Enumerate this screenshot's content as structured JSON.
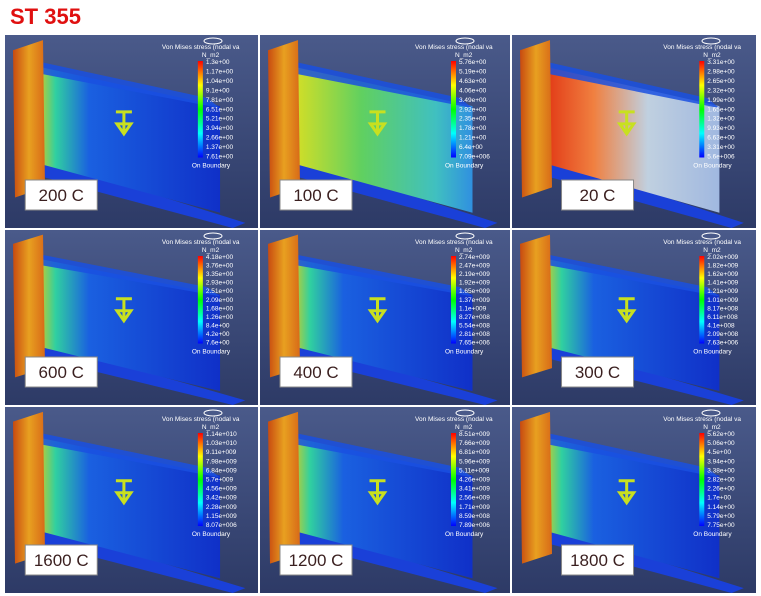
{
  "title": "ST 355",
  "panels": [
    {
      "label": "200 C",
      "legend_title": "Von Mises stress (nodal va",
      "unit": "N_m2",
      "boundary": "On Boundary",
      "legend_values": [
        "1.3e+00",
        "1.17e+00",
        "1.04e+00",
        "9.1e+00",
        "7.81e+00",
        "6.51e+00",
        "5.21e+00",
        "3.94e+00",
        "2.66e+00",
        "1.37e+00",
        "7.61e+00"
      ]
    },
    {
      "label": "100 C",
      "legend_title": "Von Mises stress (nodal va",
      "unit": "N_m2",
      "boundary": "On Boundary",
      "legend_values": [
        "5.76e+00",
        "5.19e+00",
        "4.63e+00",
        "4.06e+00",
        "3.49e+00",
        "2.92e+00",
        "2.35e+00",
        "1.78e+00",
        "1.21e+00",
        "6.4e+00",
        "7.09e+006"
      ]
    },
    {
      "label": "20 C",
      "legend_title": "Von Mises stress (nodal va",
      "unit": "N_m2",
      "boundary": "On Boundary",
      "legend_values": [
        "3.31e+00",
        "2.98e+00",
        "2.65e+00",
        "2.32e+00",
        "1.99e+00",
        "1.65e+00",
        "1.32e+00",
        "9.93e+00",
        "6.63e+00",
        "3.31e+00",
        "5.6e+006"
      ]
    },
    {
      "label": "600 C",
      "legend_title": "Von Mises stress (nodal va",
      "unit": "N_m2",
      "boundary": "On Boundary",
      "legend_values": [
        "4.18e+00",
        "3.76e+00",
        "3.35e+00",
        "2.93e+00",
        "2.51e+00",
        "2.09e+00",
        "1.68e+00",
        "1.26e+00",
        "8.4e+00",
        "4.2e+00",
        "7.6e+00"
      ]
    },
    {
      "label": "400 C",
      "legend_title": "Von Mises stress (nodal va",
      "unit": "N_m2",
      "boundary": "On Boundary",
      "legend_values": [
        "2.74e+009",
        "2.47e+009",
        "2.19e+009",
        "1.92e+009",
        "1.65e+009",
        "1.37e+009",
        "1.1e+009",
        "8.27e+008",
        "5.54e+008",
        "2.81e+008",
        "7.65e+006"
      ]
    },
    {
      "label": "300 C",
      "legend_title": "Von Mises stress (nodal va",
      "unit": "N_m2",
      "boundary": "On Boundary",
      "legend_values": [
        "2.02e+009",
        "1.82e+009",
        "1.62e+009",
        "1.41e+009",
        "1.21e+009",
        "1.01e+009",
        "8.17e+008",
        "6.11e+008",
        "4.1e+008",
        "2.09e+008",
        "7.63e+006"
      ]
    },
    {
      "label": "1600 C",
      "legend_title": "Von Mises stress (nodal va",
      "unit": "N_m2",
      "boundary": "On Boundary",
      "legend_values": [
        "1.14e+010",
        "1.03e+010",
        "9.11e+009",
        "7.98e+009",
        "6.84e+009",
        "5.7e+009",
        "4.56e+009",
        "3.42e+009",
        "2.28e+009",
        "1.15e+009",
        "8.07e+006"
      ]
    },
    {
      "label": "1200 C",
      "legend_title": "Von Mises stress (nodal va",
      "unit": "N_m2",
      "boundary": "On Boundary",
      "legend_values": [
        "8.51e+009",
        "7.66e+009",
        "6.81e+009",
        "5.96e+009",
        "5.11e+009",
        "4.26e+009",
        "3.41e+009",
        "2.56e+009",
        "1.71e+009",
        "8.59e+008",
        "7.89e+006"
      ]
    },
    {
      "label": "1800 C",
      "legend_title": "Von Mises stress (nodal va",
      "unit": "N_m2",
      "boundary": "On Boundary",
      "legend_values": [
        "5.62e+00",
        "5.06e+00",
        "4.5e+00",
        "3.94e+00",
        "3.38e+00",
        "2.82e+00",
        "2.26e+00",
        "1.7e+00",
        "1.14e+00",
        "5.79e+00",
        "7.75e+00"
      ]
    }
  ]
}
